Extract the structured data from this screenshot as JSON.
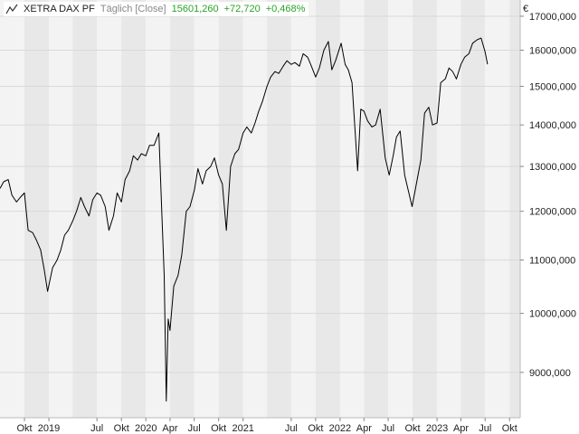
{
  "header": {
    "instrument": "XETRA DAX PF",
    "interval": "Täglich [Close]",
    "last": "15601,260",
    "change": "+72,720",
    "change_pct": "+0,468%",
    "icon": "line-chart-icon"
  },
  "currency": "€",
  "colors": {
    "positive": "#2aa22a",
    "band_light": "#f3f3f3",
    "band_dark": "#e8e8e8",
    "grid": "#d9d9d9",
    "line": "#000000"
  },
  "chart_data": {
    "type": "line",
    "title": "XETRA DAX PF",
    "series": [
      {
        "name": "XETRA DAX PF",
        "x": [
          "2018-07-01",
          "2018-07-15",
          "2018-08-01",
          "2018-08-15",
          "2018-09-01",
          "2018-09-15",
          "2018-10-01",
          "2018-10-15",
          "2018-11-01",
          "2018-11-15",
          "2018-12-01",
          "2018-12-15",
          "2018-12-27",
          "2019-01-15",
          "2019-02-01",
          "2019-02-15",
          "2019-03-01",
          "2019-03-15",
          "2019-04-01",
          "2019-04-15",
          "2019-05-01",
          "2019-05-15",
          "2019-06-01",
          "2019-06-15",
          "2019-07-01",
          "2019-07-15",
          "2019-08-01",
          "2019-08-15",
          "2019-09-01",
          "2019-09-15",
          "2019-10-01",
          "2019-10-15",
          "2019-11-01",
          "2019-11-15",
          "2019-12-01",
          "2019-12-15",
          "2020-01-01",
          "2020-01-15",
          "2020-02-01",
          "2020-02-19",
          "2020-03-01",
          "2020-03-10",
          "2020-03-18",
          "2020-03-25",
          "2020-04-01",
          "2020-04-15",
          "2020-05-01",
          "2020-05-15",
          "2020-06-01",
          "2020-06-15",
          "2020-07-01",
          "2020-07-15",
          "2020-08-01",
          "2020-08-15",
          "2020-09-01",
          "2020-09-15",
          "2020-10-01",
          "2020-10-15",
          "2020-10-30",
          "2020-11-15",
          "2020-12-01",
          "2020-12-15",
          "2021-01-01",
          "2021-01-15",
          "2021-02-01",
          "2021-02-15",
          "2021-03-01",
          "2021-03-15",
          "2021-04-01",
          "2021-04-15",
          "2021-05-01",
          "2021-05-15",
          "2021-06-01",
          "2021-06-15",
          "2021-07-01",
          "2021-07-15",
          "2021-08-01",
          "2021-08-15",
          "2021-09-01",
          "2021-09-15",
          "2021-10-01",
          "2021-10-15",
          "2021-11-01",
          "2021-11-18",
          "2021-12-01",
          "2021-12-15",
          "2022-01-05",
          "2022-01-20",
          "2022-02-01",
          "2022-02-15",
          "2022-03-08",
          "2022-03-20",
          "2022-04-01",
          "2022-04-15",
          "2022-05-01",
          "2022-05-15",
          "2022-06-01",
          "2022-06-20",
          "2022-07-05",
          "2022-07-20",
          "2022-08-01",
          "2022-08-15",
          "2022-09-01",
          "2022-09-29",
          "2022-10-15",
          "2022-11-01",
          "2022-11-15",
          "2022-12-01",
          "2022-12-15",
          "2023-01-01",
          "2023-01-15",
          "2023-02-01",
          "2023-02-15",
          "2023-03-01",
          "2023-03-15",
          "2023-04-01",
          "2023-04-15",
          "2023-05-01",
          "2023-05-15",
          "2023-06-01",
          "2023-06-16",
          "2023-07-01",
          "2023-07-10"
        ],
        "y": [
          12500,
          12650,
          12700,
          12350,
          12200,
          12300,
          12400,
          11600,
          11550,
          11400,
          11200,
          10800,
          10400,
          10850,
          11000,
          11200,
          11500,
          11600,
          11800,
          12000,
          12300,
          12100,
          11900,
          12250,
          12400,
          12350,
          12100,
          11600,
          11900,
          12400,
          12200,
          12700,
          12900,
          13250,
          13150,
          13300,
          13250,
          13500,
          13500,
          13800,
          12000,
          10700,
          8550,
          9900,
          9700,
          10500,
          10700,
          11100,
          12000,
          12100,
          12450,
          12950,
          12600,
          12900,
          13000,
          13200,
          12800,
          12600,
          11600,
          13000,
          13300,
          13400,
          13800,
          13950,
          13800,
          14050,
          14350,
          14600,
          15000,
          15250,
          15400,
          15350,
          15550,
          15700,
          15600,
          15650,
          15550,
          15900,
          15800,
          15550,
          15250,
          15500,
          16000,
          16250,
          15450,
          15700,
          16200,
          15600,
          15450,
          15100,
          12900,
          14400,
          14350,
          14100,
          13950,
          14000,
          14400,
          13200,
          12800,
          13250,
          13700,
          13850,
          12800,
          12100,
          12600,
          13150,
          14300,
          14450,
          14000,
          14050,
          15100,
          15200,
          15500,
          15400,
          15200,
          15600,
          15800,
          15900,
          16200,
          16300,
          16350,
          15950,
          15601
        ]
      }
    ],
    "xlabel": "",
    "ylabel": "",
    "xlim": [
      "2018-07-01",
      "2023-11-10"
    ],
    "ylim": [
      8300,
      17500
    ],
    "y_scale": "log",
    "yticks": [
      9000,
      10000,
      11000,
      12000,
      13000,
      14000,
      15000,
      16000,
      17000
    ],
    "ytick_labels": [
      "9000,000",
      "10000,000",
      "11000,000",
      "12000,000",
      "13000,000",
      "14000,000",
      "15000,000",
      "16000,000",
      "17000,000"
    ],
    "xticks": [
      {
        "date": "2018-10-01",
        "label": "Okt"
      },
      {
        "date": "2019-01-01",
        "label": "2019"
      },
      {
        "date": "2019-07-01",
        "label": "Jul"
      },
      {
        "date": "2019-10-01",
        "label": "Okt"
      },
      {
        "date": "2020-01-01",
        "label": "2020"
      },
      {
        "date": "2020-04-01",
        "label": "Apr"
      },
      {
        "date": "2020-07-01",
        "label": "Jul"
      },
      {
        "date": "2020-10-01",
        "label": "Okt"
      },
      {
        "date": "2021-01-01",
        "label": "2021"
      },
      {
        "date": "2021-07-01",
        "label": "Jul"
      },
      {
        "date": "2021-10-01",
        "label": "Okt"
      },
      {
        "date": "2022-01-01",
        "label": "2022"
      },
      {
        "date": "2022-04-01",
        "label": "Apr"
      },
      {
        "date": "2022-07-01",
        "label": "Jul"
      },
      {
        "date": "2022-10-01",
        "label": "Okt"
      },
      {
        "date": "2023-01-01",
        "label": "2023"
      },
      {
        "date": "2023-04-01",
        "label": "Apr"
      },
      {
        "date": "2023-07-01",
        "label": "Jul"
      },
      {
        "date": "2023-10-01",
        "label": "Okt"
      }
    ],
    "y_axis_position": "right",
    "grid": true,
    "legend": "none"
  }
}
